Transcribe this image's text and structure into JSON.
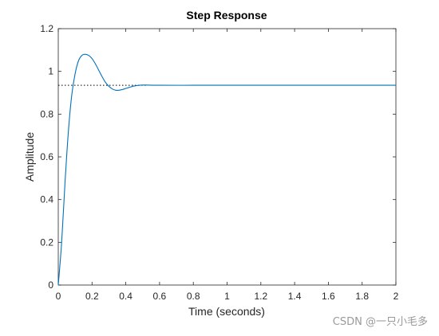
{
  "chart_data": {
    "type": "line",
    "title": "Step Response",
    "xlabel": "Time (seconds)",
    "ylabel": "Amplitude",
    "xlim": [
      0,
      2
    ],
    "ylim": [
      0,
      1.2
    ],
    "x_ticks": [
      "0",
      "0.2",
      "0.4",
      "0.6",
      "0.8",
      "1",
      "1.2",
      "1.4",
      "1.6",
      "1.8",
      "2"
    ],
    "y_ticks": [
      "0",
      "0.2",
      "0.4",
      "0.6",
      "0.8",
      "1",
      "1.2"
    ],
    "grid": false,
    "steady_state": 0.935,
    "steady_state_line": {
      "style": "dotted",
      "x_end": 0.52
    },
    "series": [
      {
        "color": "#0072bd",
        "x": [
          0,
          0.02,
          0.04,
          0.06,
          0.08,
          0.1,
          0.12,
          0.14,
          0.16,
          0.18,
          0.2,
          0.22,
          0.24,
          0.26,
          0.28,
          0.3,
          0.32,
          0.34,
          0.36,
          0.38,
          0.4,
          0.42,
          0.44,
          0.46,
          0.48,
          0.5,
          0.52,
          0.6,
          0.8,
          1.0,
          1.2,
          1.4,
          1.6,
          1.8,
          2.0
        ],
        "y": [
          0,
          0.2,
          0.48,
          0.72,
          0.89,
          0.99,
          1.05,
          1.075,
          1.08,
          1.075,
          1.06,
          1.035,
          1.005,
          0.975,
          0.948,
          0.93,
          0.918,
          0.912,
          0.912,
          0.915,
          0.92,
          0.925,
          0.93,
          0.933,
          0.935,
          0.936,
          0.936,
          0.935,
          0.935,
          0.935,
          0.935,
          0.935,
          0.935,
          0.935,
          0.935
        ]
      }
    ]
  },
  "watermark": "CSDN @一只小毛多"
}
